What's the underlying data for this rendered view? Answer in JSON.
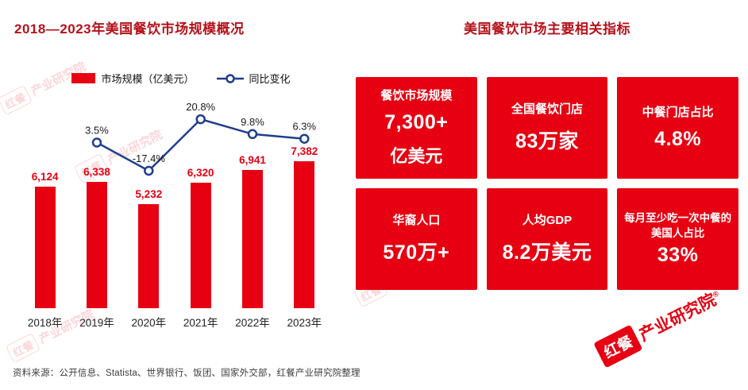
{
  "left_chart": {
    "title": "2018—2023年美国餐饮市场规模概况",
    "legend": {
      "bar_label": "市场规模（亿美元）",
      "line_label": "同比变化"
    }
  },
  "chart_data": {
    "type": "bar",
    "title": "2018—2023年美国餐饮市场规模概况",
    "categories": [
      "2018年",
      "2019年",
      "2020年",
      "2021年",
      "2022年",
      "2023年"
    ],
    "series": [
      {
        "name": "市场规模（亿美元）",
        "type": "bar",
        "values": [
          6124,
          6338,
          5232,
          6320,
          6941,
          7382
        ],
        "labels": [
          "6,124",
          "6,338",
          "5,232",
          "6,320",
          "6,941",
          "7,382"
        ]
      },
      {
        "name": "同比变化",
        "type": "line",
        "values": [
          null,
          3.5,
          -17.4,
          20.8,
          9.8,
          6.3
        ],
        "labels": [
          null,
          "3.5%",
          "-17.4%",
          "20.8%",
          "9.8%",
          "6.3%"
        ]
      }
    ],
    "legend_position": "top",
    "grid": false,
    "bar_color": "#e60012",
    "line_color": "#1d3e8f",
    "ylim_bar": [
      0,
      7382
    ]
  },
  "right_panel": {
    "title": "美国餐饮市场主要相关指标",
    "cards": [
      {
        "label": "餐饮市场规模",
        "value": "7,300+",
        "unit": "亿美元"
      },
      {
        "label": "全国餐饮门店",
        "value": "83万家"
      },
      {
        "label": "中餐门店占比",
        "value": "4.8%"
      },
      {
        "label": "华裔人口",
        "value": "570万+"
      },
      {
        "label": "人均GDP",
        "value": "8.2万美元"
      },
      {
        "label": "每月至少吃一次中餐的美国人占比",
        "value": "33%"
      }
    ]
  },
  "footer": {
    "source": "资料来源：公开信息、Statista、世界银行、饭团、国家外交部，红餐产业研究院整理"
  },
  "watermark": {
    "brand": "红餐",
    "institute": "产业研究院",
    "reg": "®"
  },
  "colors": {
    "accent_red": "#e60012",
    "line_navy": "#1d3e8f",
    "title_red": "#b5121b"
  }
}
